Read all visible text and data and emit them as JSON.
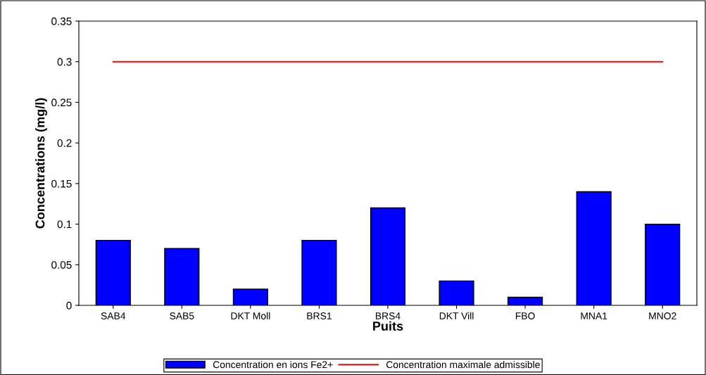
{
  "chart_data": {
    "type": "bar",
    "xlabel": "Puits",
    "ylabel": "Concentrations (mg/l)",
    "categories": [
      "SAB4",
      "SAB5",
      "DKT Moll",
      "BRS1",
      "BRS4",
      "DKT Vill",
      "FBO",
      "MNA1",
      "MNO2"
    ],
    "series": [
      {
        "name": "Concentration en ions Fe2+",
        "color": "#0000ff",
        "values": [
          0.08,
          0.07,
          0.02,
          0.08,
          0.12,
          0.03,
          0.01,
          0.14,
          0.1
        ]
      },
      {
        "name": "Concentration maximale admissible",
        "type": "line",
        "color": "#ff0000",
        "values": [
          0.3,
          0.3,
          0.3,
          0.3,
          0.3,
          0.3,
          0.3,
          0.3,
          0.3
        ]
      }
    ],
    "ylim": [
      0,
      0.35
    ],
    "yticks": [
      0,
      0.05,
      0.1,
      0.15,
      0.2,
      0.25,
      0.3,
      0.35
    ],
    "grid": false,
    "legend": "bottom",
    "marker": "none",
    "line_style": "solid"
  }
}
